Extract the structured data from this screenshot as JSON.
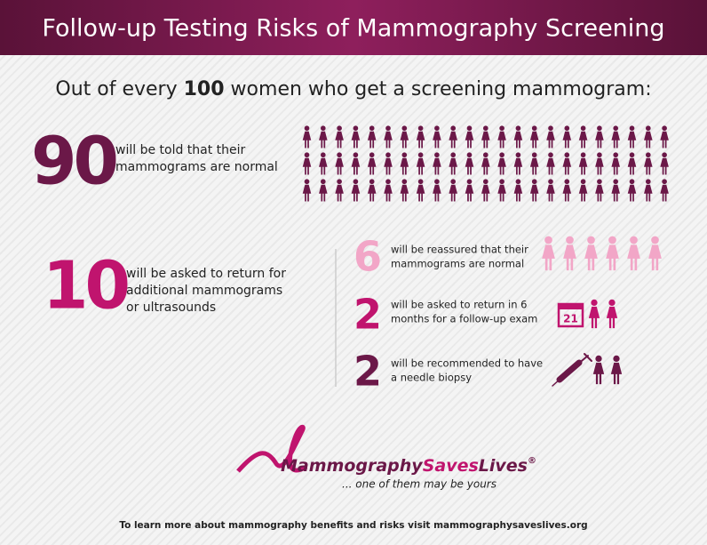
{
  "header": {
    "title": "Follow-up Testing Risks of Mammography Screening"
  },
  "intro": {
    "before": "Out of every ",
    "bold": "100",
    "after": " women who get a screening mammogram:"
  },
  "normal": {
    "number": "90",
    "lines": [
      "will be told that their",
      "mammograms are normal"
    ]
  },
  "recall": {
    "number": "10",
    "lines": [
      "will be asked to return for",
      "additional mammograms",
      "or ultrasounds"
    ]
  },
  "outcomes": [
    {
      "number": "6",
      "lines": [
        "will be reassured that their",
        "mammograms are normal"
      ]
    },
    {
      "number": "2",
      "lines": [
        "will be asked to return in 6",
        "months for a follow-up exam"
      ]
    },
    {
      "number": "2",
      "lines": [
        "will be recommended to have",
        "a needle biopsy"
      ]
    }
  ],
  "calendar": "21",
  "logo": {
    "part1": "Mammography",
    "part2": "Saves",
    "part3": "Lives",
    "mark": "®",
    "tagline": "... one of them may be yours"
  },
  "footer": "To learn more about mammography benefits and risks visit mammographysaveslives.org"
}
